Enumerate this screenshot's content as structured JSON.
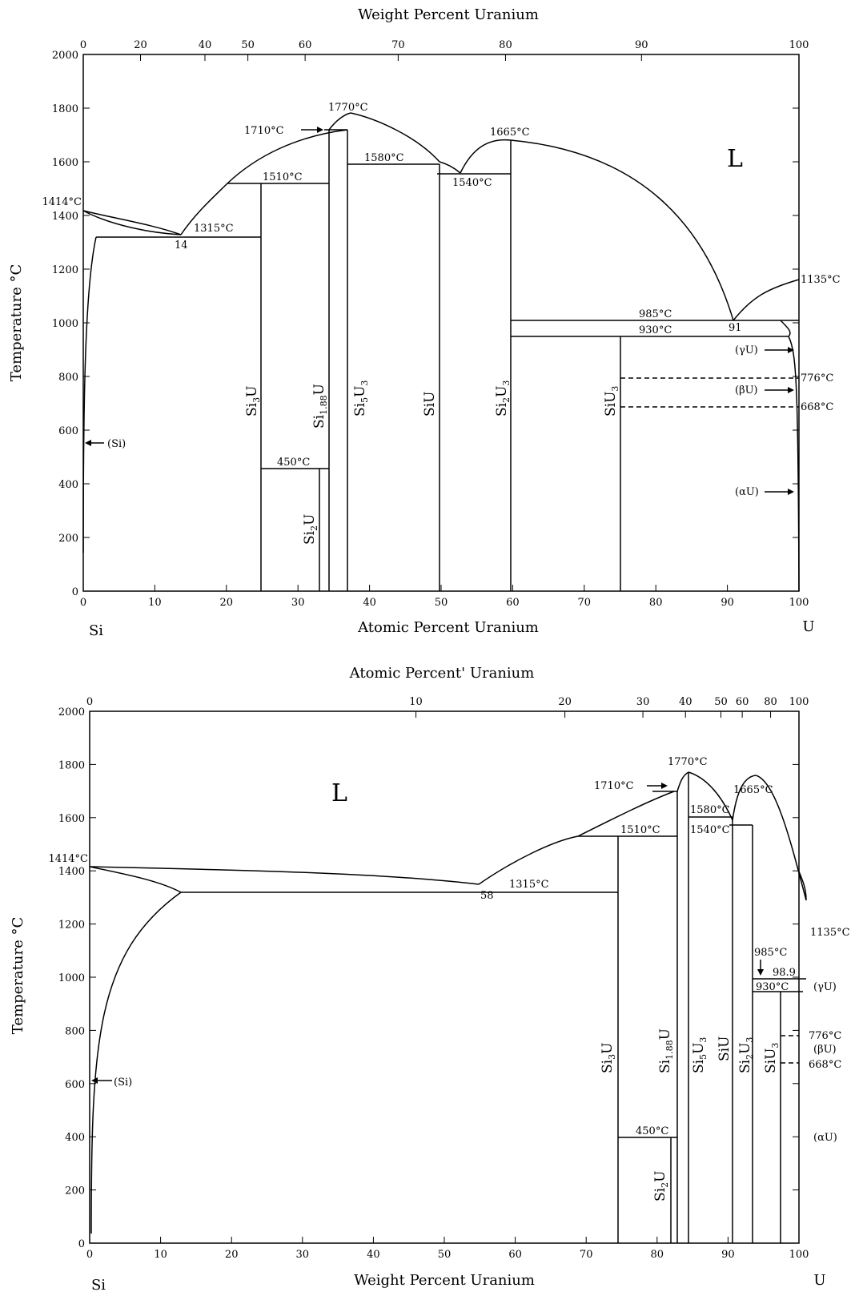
{
  "diagram_top": {
    "top_axis_title": "Weight Percent Uranium",
    "bottom_axis_title": "Atomic Percent Uranium",
    "y_axis_title": "Temperature °C",
    "left_element": "Si",
    "right_element": "U",
    "top_ticks": [
      "0",
      "20",
      "40",
      "50",
      "60",
      "70",
      "80",
      "90",
      "100"
    ],
    "bottom_ticks": [
      "0",
      "10",
      "20",
      "30",
      "40",
      "50",
      "60",
      "70",
      "80",
      "90",
      "100"
    ],
    "y_ticks": [
      "0",
      "200",
      "400",
      "600",
      "800",
      "1000",
      "1200",
      "1400",
      "1600",
      "1800",
      "2000"
    ],
    "liquid_label": "L",
    "phases": [
      "Si3U",
      "Si1.88U",
      "Si5U3",
      "SiU",
      "Si2U3",
      "SiU3",
      "Si2U"
    ],
    "temperatures": [
      "1414°C",
      "1315°C",
      "1510°C",
      "1710°C",
      "1770°C",
      "1580°C",
      "1540°C",
      "1665°C",
      "985°C",
      "930°C",
      "1135°C",
      "776°C",
      "668°C",
      "450°C"
    ],
    "eutectics": [
      "14",
      "91"
    ],
    "side_phases": [
      "(Si)",
      "(γU)",
      "(βU)",
      "(αU)"
    ]
  },
  "diagram_bottom": {
    "top_axis_title": "Atomic Percent' Uranium",
    "bottom_axis_title": "Weight Percent Uranium",
    "y_axis_title": "Temperature °C",
    "left_element": "Si",
    "right_element": "U",
    "top_ticks": [
      "0",
      "10",
      "20",
      "30",
      "40",
      "50",
      "60",
      "80",
      "100"
    ],
    "bottom_ticks": [
      "0",
      "10",
      "20",
      "30",
      "40",
      "50",
      "60",
      "70",
      "80",
      "90",
      "100"
    ],
    "y_ticks": [
      "0",
      "200",
      "400",
      "600",
      "800",
      "1000",
      "1200",
      "1400",
      "1600",
      "1800",
      "2000"
    ],
    "liquid_label": "L",
    "temperatures": [
      "1414°C",
      "1315°C",
      "1510°C",
      "1710°C",
      "1770°C",
      "1580°C",
      "1540°C",
      "1665°C",
      "985°C",
      "930°C",
      "1135°C",
      "776°C",
      "668°C",
      "450°C"
    ],
    "eutectics": [
      "58",
      "98.9"
    ],
    "side_phases": [
      "(Si)",
      "(γU)",
      "(βU)",
      "(αU)"
    ]
  }
}
